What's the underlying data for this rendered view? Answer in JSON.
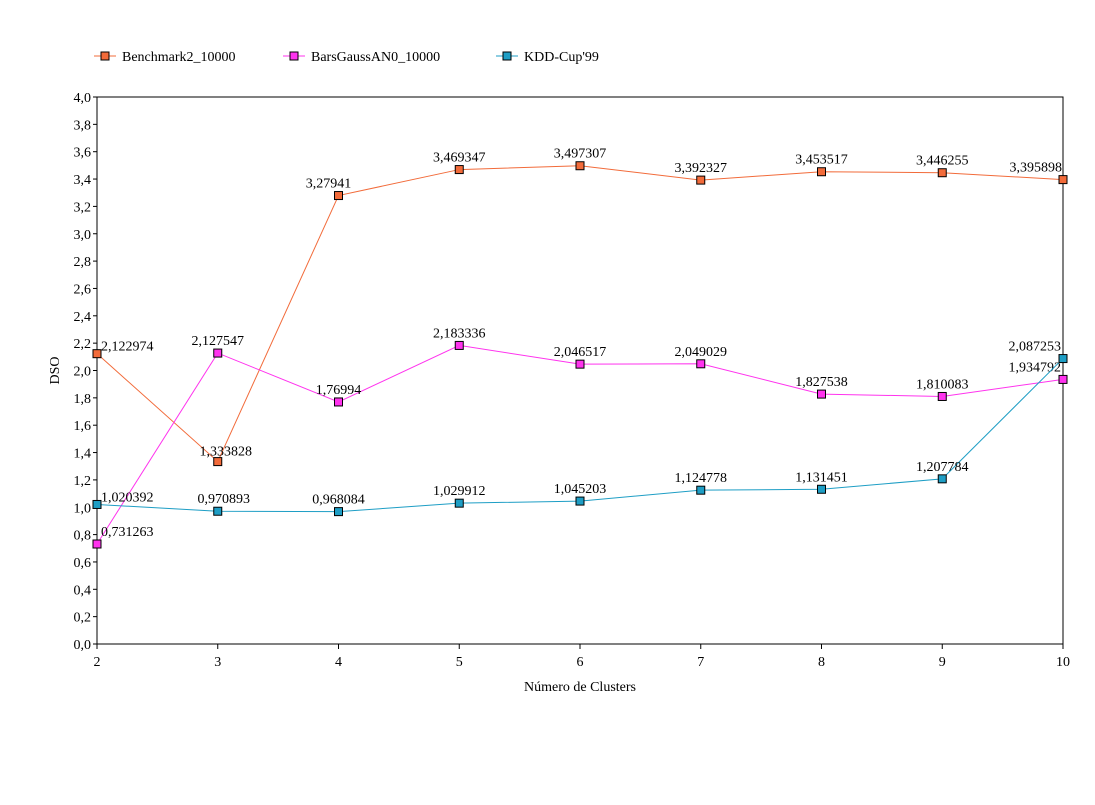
{
  "chart_data": {
    "type": "line",
    "xlabel": "Número de Clusters",
    "ylabel": "DSO",
    "x": [
      "2",
      "3",
      "4",
      "5",
      "6",
      "7",
      "8",
      "9",
      "10"
    ],
    "ylim": [
      0,
      4
    ],
    "yticks": [
      "0,0",
      "0,2",
      "0,4",
      "0,6",
      "0,8",
      "1,0",
      "1,2",
      "1,4",
      "1,6",
      "1,8",
      "2,0",
      "2,2",
      "2,4",
      "2,6",
      "2,8",
      "3,0",
      "3,2",
      "3,4",
      "3,6",
      "3,8",
      "4,0"
    ],
    "grid": false,
    "legend_position": "top-left",
    "series": [
      {
        "name": "Benchmark2_10000",
        "color": "#f26b3a",
        "values": [
          2.122974,
          1.333828,
          3.27941,
          3.469347,
          3.497307,
          3.392327,
          3.453517,
          3.446255,
          3.395898
        ],
        "labels": [
          "2,122974",
          "1,333828",
          "3,27941",
          "3,469347",
          "3,497307",
          "3,392327",
          "3,453517",
          "3,446255",
          "3,395898"
        ]
      },
      {
        "name": "BarsGaussAN0_10000",
        "color": "#ff33ee",
        "values": [
          0.731263,
          2.127547,
          1.76994,
          2.183336,
          2.046517,
          2.049029,
          1.827538,
          1.810083,
          1.934792
        ],
        "labels": [
          "0,731263",
          "2,127547",
          "1,76994",
          "2,183336",
          "2,046517",
          "2,049029",
          "1,827538",
          "1,810083",
          "1,934792"
        ]
      },
      {
        "name": "KDD-Cup'99",
        "color": "#1e9ec5",
        "values": [
          1.020392,
          0.970893,
          0.968084,
          1.029912,
          1.045203,
          1.124778,
          1.131451,
          1.207784,
          2.087253
        ],
        "labels": [
          "1,020392",
          "0,970893",
          "0,968084",
          "1,029912",
          "1,045203",
          "1,124778",
          "1,131451",
          "1,207784",
          "2,087253"
        ]
      }
    ]
  }
}
